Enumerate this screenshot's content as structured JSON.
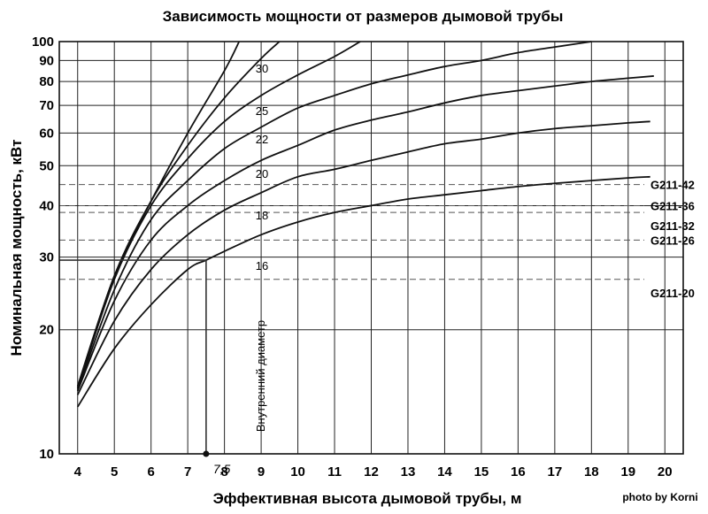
{
  "chart_data": {
    "type": "line",
    "title": "Зависимость мощности от размеров дымовой трубы",
    "xlabel": "Эффективная высота дымовой трубы, м",
    "ylabel": "Номинальная мощность, кВт",
    "xlim": [
      3.5,
      20.5
    ],
    "ylim": [
      10,
      100
    ],
    "y_scale": "log",
    "x_ticks": [
      "4",
      "5",
      "6",
      "7",
      "8",
      "9",
      "10",
      "11",
      "12",
      "13",
      "14",
      "15",
      "16",
      "17",
      "18",
      "19",
      "20"
    ],
    "y_ticks": [
      "10",
      "20",
      "30",
      "40",
      "50",
      "60",
      "70",
      "80",
      "90",
      "100"
    ],
    "grid": true,
    "series_label": "Внутренний диаметр",
    "series": [
      {
        "name": "16",
        "points": [
          [
            4,
            13
          ],
          [
            5,
            18
          ],
          [
            6,
            23
          ],
          [
            7,
            28
          ],
          [
            7.5,
            29.5
          ],
          [
            8,
            31
          ],
          [
            9,
            34
          ],
          [
            10,
            36.5
          ],
          [
            11,
            38.5
          ],
          [
            12,
            40
          ],
          [
            13,
            41.5
          ],
          [
            14,
            42.5
          ],
          [
            15,
            43.5
          ],
          [
            16,
            44.5
          ],
          [
            17,
            45.3
          ],
          [
            18,
            46
          ],
          [
            19,
            46.7
          ],
          [
            19.6,
            47
          ]
        ]
      },
      {
        "name": "18",
        "points": [
          [
            4,
            13.9
          ],
          [
            5,
            21
          ],
          [
            6,
            28
          ],
          [
            7,
            34
          ],
          [
            8,
            39
          ],
          [
            9,
            43
          ],
          [
            10,
            47
          ],
          [
            11,
            49
          ],
          [
            12,
            51.5
          ],
          [
            13,
            54
          ],
          [
            14,
            56.5
          ],
          [
            15,
            58
          ],
          [
            16,
            60
          ],
          [
            17,
            61.5
          ],
          [
            18,
            62.5
          ],
          [
            19,
            63.5
          ],
          [
            19.6,
            64
          ]
        ]
      },
      {
        "name": "20",
        "points": [
          [
            4,
            14.2
          ],
          [
            5,
            23.5
          ],
          [
            6,
            33
          ],
          [
            7,
            40
          ],
          [
            8,
            46
          ],
          [
            9,
            51.5
          ],
          [
            10,
            56
          ],
          [
            11,
            61
          ],
          [
            12,
            64.5
          ],
          [
            13,
            67.5
          ],
          [
            14,
            71
          ],
          [
            15,
            74
          ],
          [
            16,
            76
          ],
          [
            17,
            78
          ],
          [
            18,
            80
          ],
          [
            19,
            81.5
          ],
          [
            19.7,
            82.5
          ]
        ]
      },
      {
        "name": "22",
        "points": [
          [
            4,
            14.3
          ],
          [
            5,
            25
          ],
          [
            6,
            37
          ],
          [
            7,
            46
          ],
          [
            8,
            55
          ],
          [
            9,
            62
          ],
          [
            10,
            69
          ],
          [
            11,
            74
          ],
          [
            12,
            79
          ],
          [
            13,
            83
          ],
          [
            14,
            87
          ],
          [
            15,
            90
          ],
          [
            16,
            94
          ],
          [
            17,
            97
          ],
          [
            18,
            100
          ]
        ]
      },
      {
        "name": "25",
        "points": [
          [
            4,
            14.4
          ],
          [
            5,
            26.5
          ],
          [
            6,
            40
          ],
          [
            7,
            52
          ],
          [
            8,
            64
          ],
          [
            9,
            74
          ],
          [
            10,
            83
          ],
          [
            11,
            92
          ],
          [
            11.7,
            100
          ]
        ]
      },
      {
        "name": "30",
        "points": [
          [
            4,
            14.5
          ],
          [
            5,
            27
          ],
          [
            6,
            41
          ],
          [
            7,
            56
          ],
          [
            8,
            73
          ],
          [
            9,
            91
          ],
          [
            9.5,
            100
          ]
        ]
      },
      {
        "name": "",
        "points": [
          [
            4,
            14.6
          ],
          [
            5,
            27
          ],
          [
            6,
            41
          ],
          [
            7,
            60
          ],
          [
            8,
            85
          ],
          [
            8.4,
            100
          ]
        ]
      }
    ],
    "models": [
      {
        "name": "G211-42",
        "value": 45
      },
      {
        "name": "G211-36",
        "value": 40
      },
      {
        "name": "G211-32",
        "value": 38.5
      },
      {
        "name": "G211-26",
        "value": 33
      },
      {
        "name": "G211-20",
        "value": 26.5
      }
    ],
    "annotation": {
      "text": "7,5",
      "x": 7.5,
      "y": 29.5
    }
  },
  "credit": "photo by Korni"
}
